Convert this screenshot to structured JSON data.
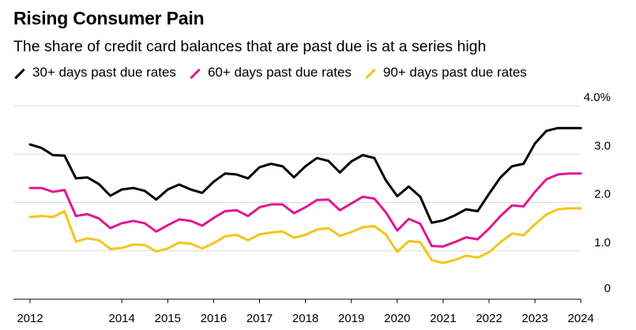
{
  "title": "Rising Consumer Pain",
  "subtitle": "The share of credit card balances that are past due is at a series high",
  "chart_data": {
    "type": "line",
    "title": "Rising Consumer Pain",
    "subtitle": "The share of credit card balances that are past due is at a series high",
    "xlabel": "",
    "ylabel": "",
    "ylim": [
      0,
      4.0
    ],
    "xlim": [
      2012.0,
      2024.5
    ],
    "y_ticks": [
      "0",
      "1.0",
      "2.0",
      "3.0",
      "4.0%"
    ],
    "y_tick_values": [
      0,
      1.0,
      2.0,
      3.0,
      4.0
    ],
    "x_ticks": [
      "2012",
      "2014",
      "2015",
      "2016",
      "2017",
      "2018",
      "2019",
      "2020",
      "2021",
      "2022",
      "2023",
      "2024"
    ],
    "x_tick_values": [
      2012.0,
      2014.0,
      2015.0,
      2016.0,
      2017.0,
      2018.0,
      2019.0,
      2020.0,
      2021.0,
      2022.0,
      2023.0,
      2024.0
    ],
    "grid": "horizontal",
    "legend_position": "top-left",
    "x": [
      2012.0,
      2012.25,
      2012.5,
      2012.75,
      2013.0,
      2013.25,
      2013.5,
      2013.75,
      2014.0,
      2014.25,
      2014.5,
      2014.75,
      2015.0,
      2015.25,
      2015.5,
      2015.75,
      2016.0,
      2016.25,
      2016.5,
      2016.75,
      2017.0,
      2017.25,
      2017.5,
      2017.75,
      2018.0,
      2018.25,
      2018.5,
      2018.75,
      2019.0,
      2019.25,
      2019.5,
      2019.75,
      2020.0,
      2020.25,
      2020.5,
      2020.75,
      2021.0,
      2021.25,
      2021.5,
      2021.75,
      2022.0,
      2022.25,
      2022.5,
      2022.75,
      2023.0,
      2023.25,
      2023.5,
      2023.75,
      2024.0
    ],
    "series": [
      {
        "name": "30+ days past due rates",
        "color": "#000000",
        "values": [
          3.2,
          3.13,
          2.98,
          2.97,
          2.5,
          2.52,
          2.38,
          2.14,
          2.27,
          2.3,
          2.24,
          2.06,
          2.27,
          2.37,
          2.27,
          2.2,
          2.43,
          2.6,
          2.58,
          2.5,
          2.73,
          2.8,
          2.75,
          2.52,
          2.75,
          2.92,
          2.86,
          2.62,
          2.85,
          2.98,
          2.92,
          2.46,
          2.13,
          2.33,
          2.12,
          1.58,
          1.63,
          1.73,
          1.86,
          1.82,
          2.18,
          2.52,
          2.75,
          2.8,
          3.22,
          3.48,
          3.54,
          3.54,
          3.54
        ]
      },
      {
        "name": "60+ days past due rates",
        "color": "#e0188f",
        "values": [
          2.3,
          2.3,
          2.22,
          2.26,
          1.72,
          1.76,
          1.67,
          1.47,
          1.57,
          1.62,
          1.57,
          1.4,
          1.53,
          1.65,
          1.62,
          1.52,
          1.68,
          1.82,
          1.84,
          1.72,
          1.9,
          1.96,
          1.96,
          1.78,
          1.9,
          2.05,
          2.06,
          1.84,
          1.98,
          2.12,
          2.08,
          1.8,
          1.42,
          1.66,
          1.56,
          1.1,
          1.09,
          1.18,
          1.28,
          1.24,
          1.46,
          1.72,
          1.94,
          1.92,
          2.22,
          2.48,
          2.58,
          2.6,
          2.6
        ]
      },
      {
        "name": "90+ days past due rates",
        "color": "#f5c518",
        "values": [
          1.7,
          1.72,
          1.7,
          1.82,
          1.19,
          1.26,
          1.22,
          1.04,
          1.06,
          1.13,
          1.12,
          0.99,
          1.05,
          1.17,
          1.15,
          1.05,
          1.16,
          1.3,
          1.33,
          1.22,
          1.34,
          1.38,
          1.4,
          1.27,
          1.33,
          1.44,
          1.47,
          1.31,
          1.39,
          1.49,
          1.51,
          1.34,
          0.98,
          1.2,
          1.18,
          0.81,
          0.75,
          0.81,
          0.9,
          0.86,
          0.97,
          1.18,
          1.36,
          1.32,
          1.55,
          1.75,
          1.86,
          1.88,
          1.88
        ]
      }
    ]
  }
}
